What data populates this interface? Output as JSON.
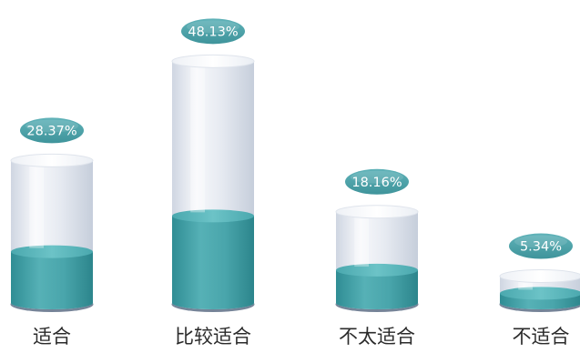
{
  "chart_data": {
    "type": "bar",
    "style": "3d-cylinder",
    "categories": [
      "适合",
      "比较适合",
      "不太适合",
      "不适合"
    ],
    "values": [
      28.37,
      48.13,
      18.16,
      5.34
    ],
    "value_labels": [
      "28.37%",
      "48.13%",
      "18.16%",
      "5.34%"
    ],
    "title": "",
    "xlabel": "",
    "ylabel": "",
    "ylim": [
      0,
      50
    ],
    "grid": false,
    "legend": "none",
    "colors": {
      "fill_teal": "#48a4aa",
      "fill_teal_top": "#58b8bd",
      "glass_body": "#e3e8f0",
      "glass_top": "#f4f6fa",
      "label_bubble": "#4a9fa6",
      "base_rim": "#5d6e86"
    }
  }
}
